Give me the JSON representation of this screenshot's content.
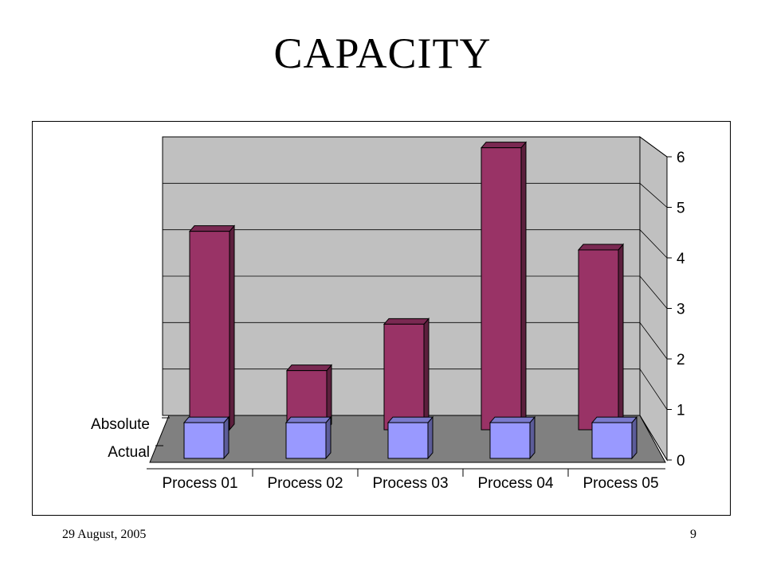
{
  "slide": {
    "title": "CAPACITY",
    "footer_date": "29 August, 2005",
    "page_number": "9"
  },
  "chart_data": {
    "type": "bar",
    "subtype": "3d-column",
    "categories": [
      "Process 01",
      "Process 02",
      "Process 03",
      "Process 04",
      "Process 05"
    ],
    "series": [
      {
        "name": "Absolute",
        "values": [
          4.0,
          1.0,
          2.0,
          5.8,
          3.6
        ],
        "color": "#993366"
      },
      {
        "name": "Actual",
        "values": [
          0.6,
          0.6,
          0.6,
          0.6,
          0.6
        ],
        "color": "#9999ff"
      }
    ],
    "yticks": [
      0,
      1,
      2,
      3,
      4,
      5,
      6
    ],
    "ylim": [
      0,
      6
    ],
    "grid": true,
    "legend": "none",
    "colors": {
      "wall": "#c0c0c0",
      "side_wall": "#c0c0c0",
      "floor": "#808080",
      "gridline": "#000000"
    }
  }
}
